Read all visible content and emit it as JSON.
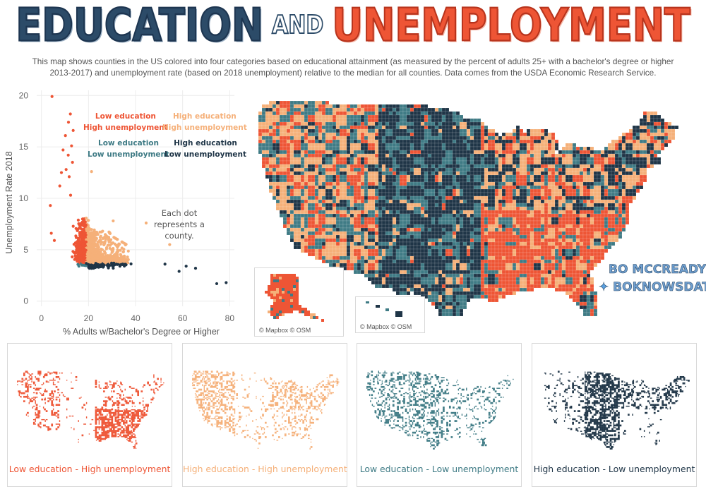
{
  "header": {
    "title_part1": "EDUCATION",
    "title_part2": "AND",
    "title_part3": "UNEMPLOYMENT",
    "subtitle_line1": "This map shows counties in the US colored into four categories based on educational attainment (as measured by the percent of adults 25+ with a bachelor's degree or higher",
    "subtitle_line2": "2013-2017) and unemployment rate (based on 2018 unemployment) relative to the median for all counties. Data comes from the USDA Economic Research Service."
  },
  "colors": {
    "low_edu_high_unemp": "#ee5535",
    "high_edu_high_unemp": "#f5b079",
    "low_edu_low_unemp": "#3f7b85",
    "high_edu_low_unemp": "#1f3547"
  },
  "legend": {
    "low_edu_high_unemp": [
      "Low education",
      "High unemployment"
    ],
    "high_edu_high_unemp": [
      "High education",
      "High unemployment"
    ],
    "low_edu_low_unemp": [
      "Low education",
      "Low unemployment"
    ],
    "high_edu_low_unemp": [
      "High education",
      "Low unemployment"
    ]
  },
  "note": "Each dot represents a county.",
  "chart_data": {
    "type": "scatter",
    "xlabel": "% Adults w/Bachelor's Degree or Higher",
    "ylabel": "Unemployment Rate 2018",
    "xlim": [
      -2,
      82
    ],
    "ylim": [
      -0.5,
      20.5
    ],
    "x_ticks": [
      0,
      20,
      40,
      60,
      80
    ],
    "y_ticks": [
      0,
      5,
      10,
      15,
      20
    ],
    "grid": true,
    "median_x": 19,
    "median_y": 3.7,
    "outliers": [
      {
        "x": 4.5,
        "y": 19.9
      },
      {
        "x": 12.3,
        "y": 18.2
      },
      {
        "x": 11.5,
        "y": 17.4
      },
      {
        "x": 13.5,
        "y": 16.6
      },
      {
        "x": 10.2,
        "y": 16.1
      },
      {
        "x": 12.8,
        "y": 15.1
      },
      {
        "x": 9.2,
        "y": 14.7
      },
      {
        "x": 11.4,
        "y": 14.2
      },
      {
        "x": 13.2,
        "y": 13.5
      },
      {
        "x": 10.5,
        "y": 12.8
      },
      {
        "x": 8.5,
        "y": 12.5
      },
      {
        "x": 11.8,
        "y": 12.1
      },
      {
        "x": 21.3,
        "y": 12.6
      },
      {
        "x": 7.8,
        "y": 11.2
      },
      {
        "x": 12.4,
        "y": 10.3
      },
      {
        "x": 3.8,
        "y": 9.3
      },
      {
        "x": 30.5,
        "y": 7.8
      },
      {
        "x": 44.5,
        "y": 7.6
      },
      {
        "x": 54.5,
        "y": 5.5
      },
      {
        "x": 74.5,
        "y": 1.7
      },
      {
        "x": 78.5,
        "y": 1.8
      },
      {
        "x": 65.5,
        "y": 3.2
      },
      {
        "x": 61.5,
        "y": 3.4
      },
      {
        "x": 58.5,
        "y": 2.9
      },
      {
        "x": 52.5,
        "y": 3.6
      },
      {
        "x": 5.5,
        "y": 5.9
      },
      {
        "x": 4.2,
        "y": 6.6
      }
    ]
  },
  "map": {
    "attribution": "© Mapbox © OSM"
  },
  "credit": {
    "name": "BO MCCREADY",
    "handle": "BOKNOWSDATA"
  },
  "panels": [
    {
      "label": "Low education - High unemployment",
      "key": "low_edu_high_unemp"
    },
    {
      "label": "High education - High unemployment",
      "key": "high_edu_high_unemp"
    },
    {
      "label": "Low education - Low unemployment",
      "key": "low_edu_low_unemp"
    },
    {
      "label": "High education - Low unemployment",
      "key": "high_edu_low_unemp"
    }
  ]
}
